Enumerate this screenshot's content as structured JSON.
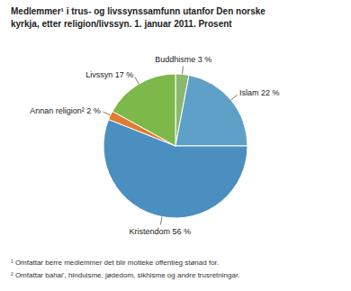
{
  "chart_data": {
    "type": "pie",
    "title": "Medlemmer¹ i trus- og livssynssamfunn utanfor Den norske",
    "subtitle": "kyrkja, etter religion/livssyn. 1. januar 2011. Prosent",
    "categories": [
      "Buddhisme",
      "Islam",
      "Kristendom",
      "Annan religion²",
      "Livssyn"
    ],
    "values": [
      3,
      22,
      56,
      2,
      17
    ],
    "value_labels": [
      "3 %",
      "22 %",
      "56 %",
      "2 %",
      "17 %"
    ],
    "colors": [
      "#8ab96e",
      "#5fa0c8",
      "#4a8fc0",
      "#e07b30",
      "#7db84a"
    ],
    "data_labels": true,
    "footnotes": [
      "¹ Omfattar berre medlemmer det blir motteke offentleg stønad for.",
      "² Omfattar bahai’, hinduisme, jødedom, sikhisme og andre trusretningar."
    ]
  }
}
